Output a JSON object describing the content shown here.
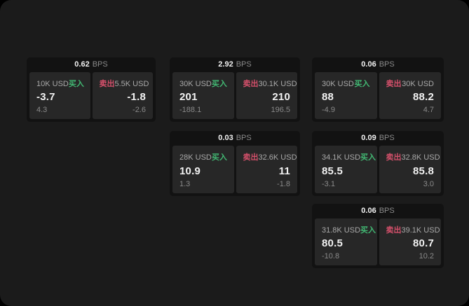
{
  "labels": {
    "buy": "买入",
    "sell": "卖出",
    "bps_unit": "BPS"
  },
  "colors": {
    "page-bg": "#1b1b1b",
    "card-bg": "#121212",
    "panel-bg": "#272727",
    "buy-green": "#42b873",
    "sell-red": "#d5506b",
    "text-primary": "#f2f2f2",
    "text-secondary": "#a9a9a9",
    "text-muted": "#8a8a8a"
  },
  "cards": [
    {
      "bps": "0.62",
      "buy": {
        "amount": "10K USD",
        "price": "-3.7",
        "sub": "4.3"
      },
      "sell": {
        "amount": "5.5K USD",
        "price": "-1.8",
        "sub": "-2.6"
      }
    },
    {
      "bps": "2.92",
      "buy": {
        "amount": "30K USD",
        "price": "201",
        "sub": "-188.1"
      },
      "sell": {
        "amount": "30.1K USD",
        "price": "210",
        "sub": "196.5"
      }
    },
    {
      "bps": "0.06",
      "buy": {
        "amount": "30K USD",
        "price": "88",
        "sub": "-4.9"
      },
      "sell": {
        "amount": "30K USD",
        "price": "88.2",
        "sub": "4.7"
      }
    },
    {
      "bps": "0.03",
      "buy": {
        "amount": "28K USD",
        "price": "10.9",
        "sub": "1.3"
      },
      "sell": {
        "amount": "32.6K USD",
        "price": "11",
        "sub": "-1.8"
      }
    },
    {
      "bps": "0.09",
      "buy": {
        "amount": "34.1K USD",
        "price": "85.5",
        "sub": "-3.1"
      },
      "sell": {
        "amount": "32.8K USD",
        "price": "85.8",
        "sub": "3.0"
      }
    },
    {
      "bps": "0.06",
      "buy": {
        "amount": "31.8K USD",
        "price": "80.5",
        "sub": "-10.8"
      },
      "sell": {
        "amount": "39.1K USD",
        "price": "80.7",
        "sub": "10.2"
      }
    }
  ]
}
